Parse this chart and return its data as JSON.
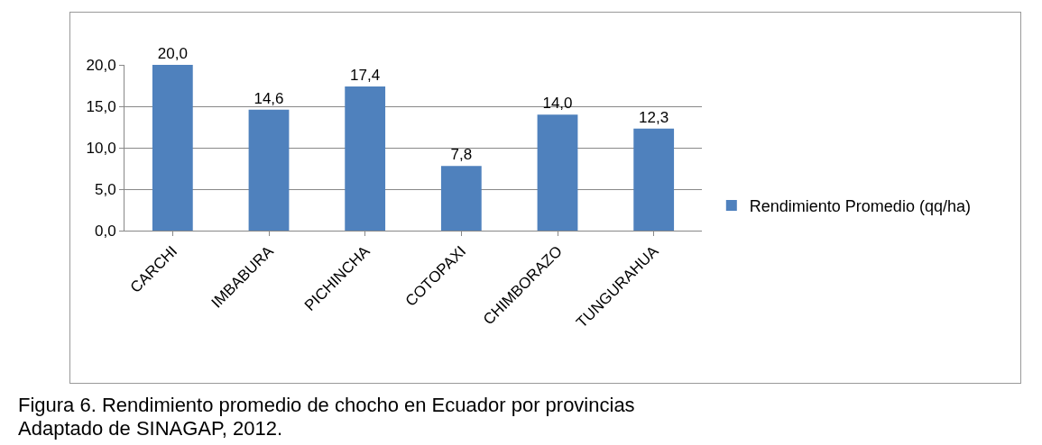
{
  "chart_data": {
    "type": "bar",
    "categories": [
      "CARCHI",
      "IMBABURA",
      "PICHINCHA",
      "COTOPAXI",
      "CHIMBORAZO",
      "TUNGURAHUA"
    ],
    "series": [
      {
        "name": "Rendimiento Promedio (qq/ha)",
        "color": "#4f81bd",
        "values": [
          20.0,
          14.6,
          17.4,
          7.8,
          14.0,
          12.3
        ],
        "value_labels": [
          "20,0",
          "14,6",
          "17,4",
          "7,8",
          "14,0",
          "12,3"
        ]
      }
    ],
    "ylim": [
      0,
      20
    ],
    "yticks": [
      {
        "value": 0,
        "label": "0,0"
      },
      {
        "value": 5,
        "label": "5,0"
      },
      {
        "value": 10,
        "label": "10,0"
      },
      {
        "value": 15,
        "label": "15,0"
      },
      {
        "value": 20,
        "label": "20,0"
      }
    ],
    "grid": "y",
    "legend": "right",
    "annotations": [
      "Figura 6. Rendimiento promedio de chocho en Ecuador por provincias",
      "Adaptado de SINAGAP, 2012."
    ]
  }
}
